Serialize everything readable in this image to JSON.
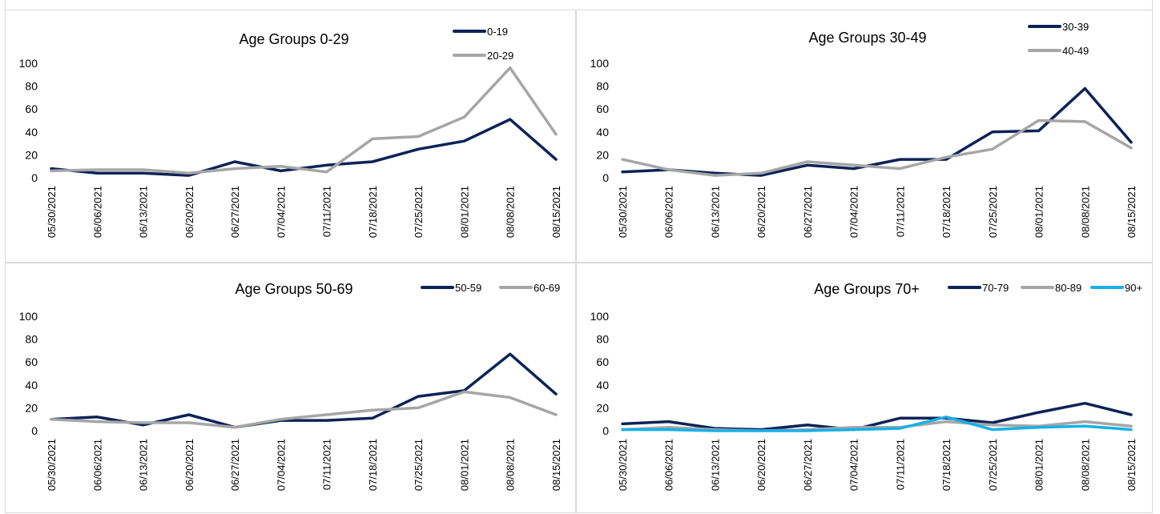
{
  "chart_data": [
    {
      "type": "line",
      "title": "Age Groups 0-29",
      "categories": [
        "05/30/2021",
        "06/06/2021",
        "06/13/2021",
        "06/20/2021",
        "06/27/2021",
        "07/04/2021",
        "07/11/2021",
        "07/18/2021",
        "07/25/2021",
        "08/01/2021",
        "08/08/2021",
        "08/15/2021"
      ],
      "ylim": [
        0,
        100
      ],
      "yticks": [
        0,
        20,
        40,
        60,
        80,
        100
      ],
      "grid": false,
      "legend": "top-right",
      "series": [
        {
          "name": "0-19",
          "color": "#0d2257",
          "values": [
            8,
            4,
            4,
            2,
            14,
            6,
            11,
            14,
            25,
            32,
            51,
            16
          ]
        },
        {
          "name": "20-29",
          "color": "#a6a6a6",
          "values": [
            6,
            7,
            7,
            4,
            8,
            10,
            5,
            34,
            36,
            53,
            96,
            38
          ]
        }
      ]
    },
    {
      "type": "line",
      "title": "Age Groups 30-49",
      "categories": [
        "05/30/2021",
        "06/06/2021",
        "06/13/2021",
        "06/20/2021",
        "06/27/2021",
        "07/04/2021",
        "07/11/2021",
        "07/18/2021",
        "07/25/2021",
        "08/01/2021",
        "08/08/2021",
        "08/15/2021"
      ],
      "ylim": [
        0,
        100
      ],
      "yticks": [
        0,
        20,
        40,
        60,
        80,
        100
      ],
      "grid": false,
      "legend": "top-right",
      "series": [
        {
          "name": "30-39",
          "color": "#0d2257",
          "values": [
            5,
            7,
            4,
            2,
            11,
            8,
            16,
            16,
            40,
            41,
            78,
            31
          ]
        },
        {
          "name": "40-49",
          "color": "#a6a6a6",
          "values": [
            16,
            7,
            2,
            4,
            14,
            11,
            8,
            18,
            25,
            50,
            49,
            26
          ]
        }
      ]
    },
    {
      "type": "line",
      "title": "Age Groups 50-69",
      "categories": [
        "05/30/2021",
        "06/06/2021",
        "06/13/2021",
        "06/20/2021",
        "06/27/2021",
        "07/04/2021",
        "07/11/2021",
        "07/18/2021",
        "07/25/2021",
        "08/01/2021",
        "08/08/2021",
        "08/15/2021"
      ],
      "ylim": [
        0,
        100
      ],
      "yticks": [
        0,
        20,
        40,
        60,
        80,
        100
      ],
      "grid": false,
      "legend": "top-right",
      "series": [
        {
          "name": "50-59",
          "color": "#0d2257",
          "values": [
            10,
            12,
            5,
            14,
            3,
            9,
            9,
            11,
            30,
            35,
            67,
            32
          ]
        },
        {
          "name": "60-69",
          "color": "#a6a6a6",
          "values": [
            10,
            8,
            7,
            7,
            3,
            10,
            14,
            18,
            20,
            34,
            29,
            14
          ]
        }
      ]
    },
    {
      "type": "line",
      "title": "Age Groups 70+",
      "categories": [
        "05/30/2021",
        "06/06/2021",
        "06/13/2021",
        "06/20/2021",
        "06/27/2021",
        "07/04/2021",
        "07/11/2021",
        "07/18/2021",
        "07/25/2021",
        "08/01/2021",
        "08/08/2021",
        "08/15/2021"
      ],
      "ylim": [
        0,
        100
      ],
      "yticks": [
        0,
        20,
        40,
        60,
        80,
        100
      ],
      "grid": false,
      "legend": "top-right",
      "series": [
        {
          "name": "70-79",
          "color": "#0d2257",
          "values": [
            6,
            8,
            2,
            1,
            5,
            1,
            11,
            11,
            7,
            16,
            24,
            14
          ]
        },
        {
          "name": "80-89",
          "color": "#a6a6a6",
          "values": [
            1,
            3,
            1,
            0,
            1,
            3,
            3,
            8,
            5,
            4,
            8,
            4
          ]
        },
        {
          "name": "90+",
          "color": "#17b0e8",
          "values": [
            1,
            1,
            0,
            0,
            0,
            1,
            2,
            12,
            1,
            3,
            4,
            1
          ]
        }
      ]
    }
  ]
}
